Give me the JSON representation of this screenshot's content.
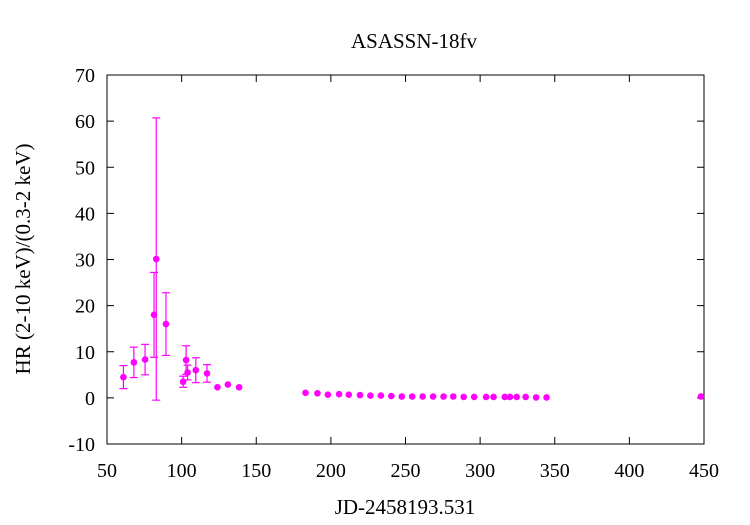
{
  "chart_data": {
    "type": "scatter",
    "title": "ASASSN-18fv",
    "xlabel": "JD-2458193.531",
    "ylabel": "HR (2-10 keV)/(0.3-2 keV)",
    "xlim": [
      50,
      450
    ],
    "ylim": [
      -10,
      70
    ],
    "xticks": [
      50,
      100,
      150,
      200,
      250,
      300,
      350,
      400,
      450
    ],
    "yticks": [
      -10,
      0,
      10,
      20,
      30,
      40,
      50,
      60,
      70
    ],
    "grid": false,
    "legend": "none",
    "color": "#ff00ff",
    "points": [
      {
        "x": 61.0,
        "y": 4.5,
        "err": 2.5
      },
      {
        "x": 68.0,
        "y": 7.7,
        "err": 3.3
      },
      {
        "x": 75.5,
        "y": 8.3,
        "err": 3.3
      },
      {
        "x": 81.5,
        "y": 18.0,
        "err": 9.2
      },
      {
        "x": 83.0,
        "y": 30.1,
        "err": 30.6
      },
      {
        "x": 89.5,
        "y": 16.0,
        "err": 6.8
      },
      {
        "x": 101.0,
        "y": 3.5,
        "err": 1.2
      },
      {
        "x": 103.0,
        "y": 8.2,
        "err": 3.1
      },
      {
        "x": 104.0,
        "y": 5.5,
        "err": 1.6
      },
      {
        "x": 109.5,
        "y": 6.0,
        "err": 2.7
      },
      {
        "x": 117.0,
        "y": 5.3,
        "err": 1.9
      },
      {
        "x": 124.0,
        "y": 2.3,
        "err": 0.3
      },
      {
        "x": 131.0,
        "y": 2.9,
        "err": 0.4
      },
      {
        "x": 138.5,
        "y": 2.3,
        "err": 0.4
      },
      {
        "x": 183.0,
        "y": 1.1,
        "err": 0.2
      },
      {
        "x": 191.0,
        "y": 1.0,
        "err": 0.2
      },
      {
        "x": 198.0,
        "y": 0.7,
        "err": 0.2
      },
      {
        "x": 205.5,
        "y": 0.8,
        "err": 0.2
      },
      {
        "x": 212.0,
        "y": 0.7,
        "err": 0.2
      },
      {
        "x": 219.5,
        "y": 0.6,
        "err": 0.2
      },
      {
        "x": 226.5,
        "y": 0.5,
        "err": 0.2
      },
      {
        "x": 233.5,
        "y": 0.5,
        "err": 0.2
      },
      {
        "x": 240.5,
        "y": 0.4,
        "err": 0.2
      },
      {
        "x": 247.5,
        "y": 0.3,
        "err": 0.2
      },
      {
        "x": 254.5,
        "y": 0.3,
        "err": 0.2
      },
      {
        "x": 261.5,
        "y": 0.3,
        "err": 0.2
      },
      {
        "x": 268.5,
        "y": 0.3,
        "err": 0.2
      },
      {
        "x": 275.5,
        "y": 0.3,
        "err": 0.2
      },
      {
        "x": 282.0,
        "y": 0.3,
        "err": 0.2
      },
      {
        "x": 289.0,
        "y": 0.2,
        "err": 0.2
      },
      {
        "x": 296.0,
        "y": 0.2,
        "err": 0.2
      },
      {
        "x": 304.0,
        "y": 0.2,
        "err": 0.2
      },
      {
        "x": 309.0,
        "y": 0.2,
        "err": 0.2
      },
      {
        "x": 316.5,
        "y": 0.2,
        "err": 0.2
      },
      {
        "x": 320.0,
        "y": 0.2,
        "err": 0.2
      },
      {
        "x": 324.5,
        "y": 0.2,
        "err": 0.2
      },
      {
        "x": 330.5,
        "y": 0.2,
        "err": 0.2
      },
      {
        "x": 337.5,
        "y": 0.1,
        "err": 0.2
      },
      {
        "x": 344.5,
        "y": 0.1,
        "err": 0.2
      },
      {
        "x": 448.0,
        "y": 0.3,
        "err": 0.2
      }
    ]
  }
}
